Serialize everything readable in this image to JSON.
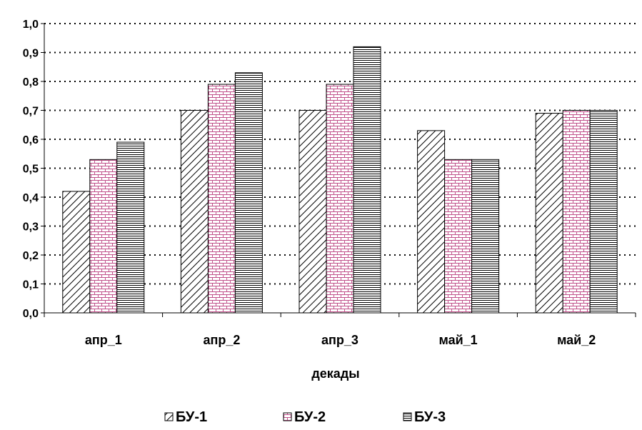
{
  "chart_data": {
    "type": "bar",
    "categories": [
      "апр_1",
      "апр_2",
      "апр_3",
      "май_1",
      "май_2"
    ],
    "series": [
      {
        "name": "БУ-1",
        "values": [
          0.42,
          0.7,
          0.7,
          0.63,
          0.69
        ],
        "pattern": "diagonal-hatch"
      },
      {
        "name": "БУ-2",
        "values": [
          0.53,
          0.79,
          0.79,
          0.53,
          0.7
        ],
        "pattern": "pink-brick"
      },
      {
        "name": "БУ-3",
        "values": [
          0.59,
          0.83,
          0.92,
          0.53,
          0.7
        ],
        "pattern": "horizontal-lines"
      }
    ],
    "xlabel": "декады",
    "ylabel": "",
    "ylim": [
      0.0,
      1.0
    ],
    "yticks": [
      "0,0",
      "0,1",
      "0,2",
      "0,3",
      "0,4",
      "0,5",
      "0,6",
      "0,7",
      "0,8",
      "0,9",
      "1,0"
    ],
    "grid": "horizontal-dotted",
    "legend_position": "bottom",
    "colors": {
      "brick": "#c0508a",
      "brick_fill": "#ffffff",
      "line": "#000000"
    }
  }
}
